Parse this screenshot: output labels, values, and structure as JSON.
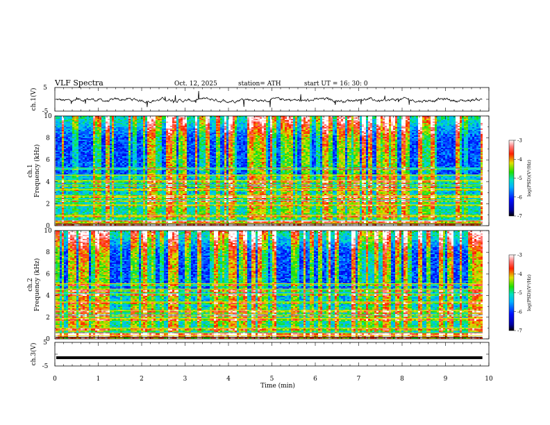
{
  "header": {
    "title": "VLF  Spectra",
    "date": "Oct. 12, 2025",
    "station": "station= ATH",
    "start_ut": "start  UT  =    16: 30: 0"
  },
  "chart_data": [
    {
      "type": "line",
      "panel": "ch1-waveform",
      "ylabel": "ch.1(V)",
      "ylim": [
        -5,
        5
      ],
      "yticks": [
        "5",
        "-5"
      ],
      "x_range_min": [
        0,
        9.85
      ],
      "series": [
        {
          "name": "ch.1 amplitude",
          "mean": 0,
          "spread": 1.5
        }
      ]
    },
    {
      "type": "heatmap",
      "panel": "ch1-spectrogram",
      "ylabel_1": "ch.1",
      "ylabel_2": "Frequency  (kHz)",
      "ylim": [
        0,
        10
      ],
      "yticks": [
        "0",
        "2",
        "4",
        "6",
        "8",
        "10"
      ],
      "colorbar": {
        "label": "log(PSD)(V²/Hz)",
        "range": [
          -7,
          -3
        ],
        "ticks": [
          "-3",
          "-4",
          "-5",
          "-6",
          "-7"
        ]
      },
      "bands_khz": [
        0.2,
        0.5,
        0.9,
        1.9,
        2.3,
        2.7,
        3.3,
        3.7,
        4.1,
        4.6,
        5.2
      ]
    },
    {
      "type": "heatmap",
      "panel": "ch2-spectrogram",
      "ylabel_1": "ch.2",
      "ylabel_2": "Frequency  (kHz)",
      "ylim": [
        0,
        10
      ],
      "yticks": [
        "0",
        "2",
        "4",
        "6",
        "8",
        "10"
      ],
      "colorbar": {
        "label": "log(PSD)(V²/Hz)",
        "range": [
          -7,
          -3
        ],
        "ticks": [
          "-3",
          "-4",
          "-5",
          "-6",
          "-7"
        ]
      },
      "bands_khz": [
        0.3,
        0.6,
        1.0,
        1.9,
        2.2,
        2.6,
        3.4,
        4.2,
        4.6,
        5.1
      ]
    },
    {
      "type": "line",
      "panel": "ch3-waveform",
      "ylabel": "ch.3(V)",
      "ylim": [
        -5,
        5
      ],
      "yticks": [
        "5",
        "-5"
      ],
      "series": [
        {
          "name": "ch.3 amplitude",
          "level": -1.5
        }
      ]
    }
  ],
  "x_axis": {
    "label": "Time  (min)",
    "range": [
      0,
      10
    ],
    "ticks": [
      "0",
      "1",
      "2",
      "3",
      "4",
      "5",
      "6",
      "7",
      "8",
      "9",
      "10"
    ]
  },
  "colors": {
    "axis": "#000000",
    "waveform": "#000000"
  }
}
